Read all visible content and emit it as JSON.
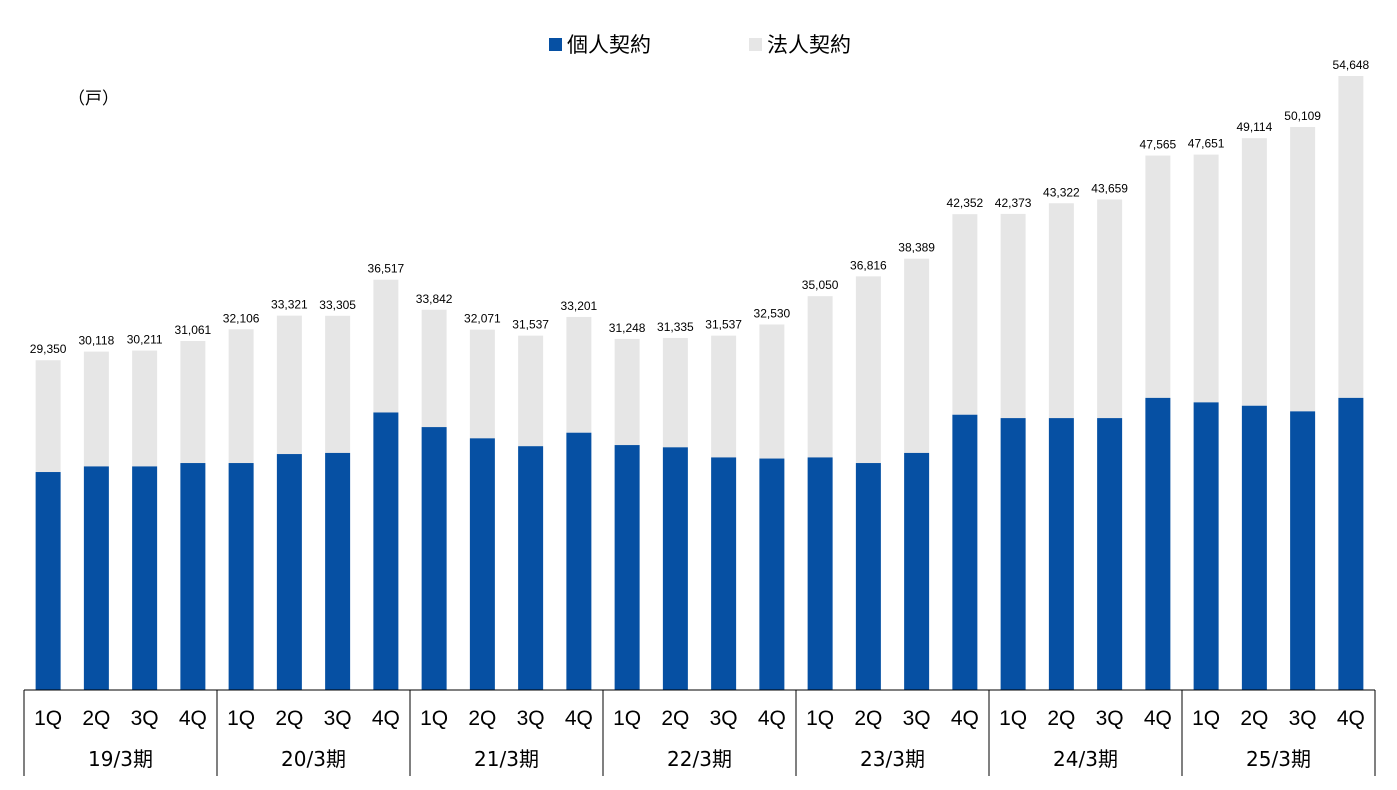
{
  "chart_data": {
    "type": "bar",
    "stacked": true,
    "unit": "（戸）",
    "legend": {
      "position": "top-center"
    },
    "colors": {
      "individual": "#0650A3",
      "corporate": "#E6E6E6"
    },
    "quarters": [
      "1Q",
      "2Q",
      "3Q",
      "4Q",
      "1Q",
      "2Q",
      "3Q",
      "4Q",
      "1Q",
      "2Q",
      "3Q",
      "4Q",
      "1Q",
      "2Q",
      "3Q",
      "4Q",
      "1Q",
      "2Q",
      "3Q",
      "4Q",
      "1Q",
      "2Q",
      "3Q",
      "4Q",
      "1Q",
      "2Q",
      "3Q",
      "4Q"
    ],
    "fiscal_years": [
      "19/3期",
      "20/3期",
      "21/3期",
      "22/3期",
      "23/3期",
      "24/3期",
      "25/3期"
    ],
    "totals": [
      29350,
      30118,
      30211,
      31061,
      32106,
      33321,
      33305,
      36517,
      33842,
      32071,
      31537,
      33201,
      31248,
      31335,
      31537,
      32530,
      35050,
      36816,
      38389,
      42352,
      42373,
      43322,
      43659,
      47565,
      47651,
      49114,
      50109,
      54648
    ],
    "total_labels": [
      "29,350",
      "30,118",
      "30,211",
      "31,061",
      "32,106",
      "33,321",
      "33,305",
      "36,517",
      "33,842",
      "32,071",
      "31,537",
      "33,201",
      "31,248",
      "31,335",
      "31,537",
      "32,530",
      "35,050",
      "36,816",
      "38,389",
      "42,352",
      "42,373",
      "43,322",
      "43,659",
      "47,565",
      "47,651",
      "49,114",
      "50,109",
      "54,648"
    ],
    "series": [
      {
        "name": "個人契約",
        "values": [
          19400,
          19900,
          19900,
          20200,
          20200,
          21000,
          21100,
          24700,
          23400,
          22400,
          21700,
          22900,
          21800,
          21600,
          20700,
          20600,
          20700,
          20200,
          21100,
          24500,
          24200,
          24200,
          24200,
          26000,
          25600,
          25300,
          24800,
          26000
        ]
      },
      {
        "name": "法人契約",
        "values": [
          9950,
          10218,
          10311,
          10861,
          11906,
          12321,
          12205,
          11817,
          10442,
          9671,
          9837,
          10301,
          9448,
          9735,
          10837,
          11930,
          14350,
          16616,
          17289,
          17852,
          18173,
          19122,
          19459,
          21565,
          22051,
          23814,
          25309,
          28648
        ]
      }
    ],
    "ylim": [
      0,
      55000
    ]
  }
}
